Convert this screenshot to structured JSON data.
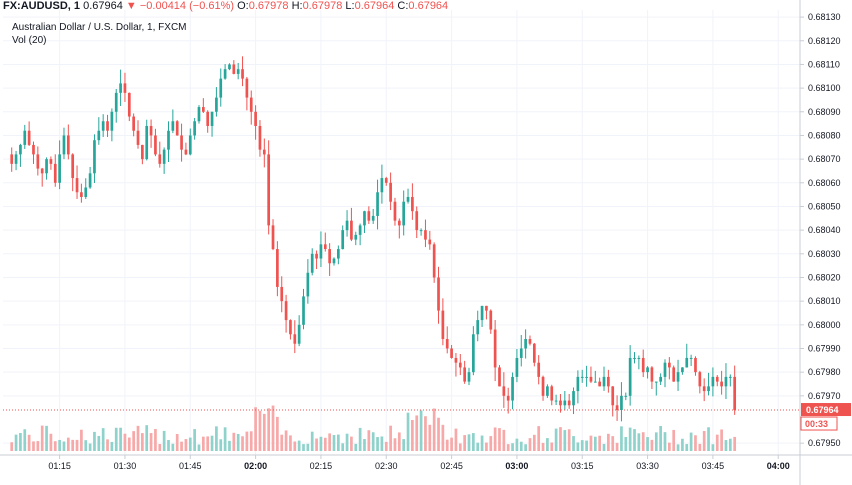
{
  "header": {
    "symbol": "FX:AUDUSD, 1",
    "last": "0.67964",
    "arrow": "▼",
    "change": "−0.00414 (−0.61%)",
    "o_label": "O:",
    "o": "0.67978",
    "h_label": "H:",
    "h": "0.67978",
    "l_label": "L:",
    "l": "0.67964",
    "c_label": "C:",
    "c": "0.67964",
    "description": "Australian Dollar / U.S. Dollar, 1, FXCM",
    "volume_label": "Vol (20)"
  },
  "colors": {
    "up": "#26a69a",
    "down": "#ef5350",
    "up_volume": "#8fd2cb",
    "down_volume": "#f6a9a8",
    "grid": "#f0f3fa",
    "axis": "#c9cdd4",
    "last_price_line": "#ef5350"
  },
  "chart_data": {
    "type": "candlestick",
    "yaxis": {
      "ticks": [
        "0.68130",
        "0.68120",
        "0.68110",
        "0.68100",
        "0.68090",
        "0.68080",
        "0.68070",
        "0.68060",
        "0.68050",
        "0.68040",
        "0.68030",
        "0.68020",
        "0.68010",
        "0.68000",
        "0.67990",
        "0.67980",
        "0.67970",
        "0.67950"
      ],
      "range": [
        0.67945,
        0.68133
      ]
    },
    "xaxis": {
      "ticks": [
        {
          "label": "01:15",
          "minute": 15
        },
        {
          "label": "01:30",
          "minute": 30
        },
        {
          "label": "01:45",
          "minute": 45
        },
        {
          "label": "02:00",
          "minute": 60
        },
        {
          "label": "02:15",
          "minute": 75
        },
        {
          "label": "02:30",
          "minute": 90
        },
        {
          "label": "02:45",
          "minute": 105
        },
        {
          "label": "03:00",
          "minute": 120
        },
        {
          "label": "03:15",
          "minute": 135
        },
        {
          "label": "03:30",
          "minute": 150
        },
        {
          "label": "03:45",
          "minute": 165
        },
        {
          "label": "04:00",
          "minute": 180
        }
      ],
      "range": [
        2,
        185
      ]
    },
    "last_price": "0.67964",
    "countdown": "00:33",
    "candles_close": [
      0.68068,
      0.68072,
      0.68076,
      0.68082,
      0.68076,
      0.68072,
      0.68066,
      0.68064,
      0.6807,
      0.68068,
      0.6806,
      0.68072,
      0.6808,
      0.68072,
      0.68062,
      0.68056,
      0.68054,
      0.68058,
      0.68064,
      0.68078,
      0.68082,
      0.68086,
      0.68082,
      0.6809,
      0.68098,
      0.68102,
      0.68098,
      0.68088,
      0.68082,
      0.68076,
      0.6807,
      0.68084,
      0.6808,
      0.68072,
      0.68068,
      0.68074,
      0.68082,
      0.68086,
      0.6808,
      0.68074,
      0.68072,
      0.6808,
      0.68086,
      0.68092,
      0.6809,
      0.68084,
      0.6809,
      0.68096,
      0.68104,
      0.68108,
      0.6811,
      0.68106,
      0.68108,
      0.68104,
      0.68096,
      0.6809,
      0.68084,
      0.68074,
      0.68072,
      0.68042,
      0.68032,
      0.68016,
      0.6801,
      0.68002,
      0.67996,
      0.67992,
      0.68,
      0.68012,
      0.68022,
      0.6803,
      0.68028,
      0.68034,
      0.68032,
      0.68026,
      0.68028,
      0.68032,
      0.6804,
      0.68044,
      0.68036,
      0.68038,
      0.68042,
      0.68048,
      0.68044,
      0.68046,
      0.68056,
      0.68062,
      0.6806,
      0.68052,
      0.68044,
      0.68042,
      0.68052,
      0.68054,
      0.68048,
      0.6804,
      0.6804,
      0.68036,
      0.68034,
      0.6802,
      0.68006,
      0.67994,
      0.6799,
      0.67986,
      0.67984,
      0.67982,
      0.67976,
      0.6798,
      0.67996,
      0.68002,
      0.68008,
      0.68006,
      0.67998,
      0.67982,
      0.67974,
      0.6797,
      0.67968,
      0.67978,
      0.67986,
      0.6799,
      0.67994,
      0.67992,
      0.67984,
      0.67978,
      0.6797,
      0.67974,
      0.67968,
      0.67968,
      0.67966,
      0.67968,
      0.67966,
      0.67972,
      0.67978,
      0.67978,
      0.67978,
      0.67976,
      0.67976,
      0.67974,
      0.67978,
      0.67974,
      0.67966,
      0.67964,
      0.6797,
      0.6797,
      0.67986,
      0.67986,
      0.67986,
      0.6798,
      0.67982,
      0.67976,
      0.67976,
      0.67978,
      0.67984,
      0.67982,
      0.67976,
      0.6798,
      0.67982,
      0.67986,
      0.67986,
      0.6798,
      0.67974,
      0.67972,
      0.67974,
      0.67978,
      0.67976,
      0.67974,
      0.67978,
      0.67978,
      0.67964
    ]
  }
}
